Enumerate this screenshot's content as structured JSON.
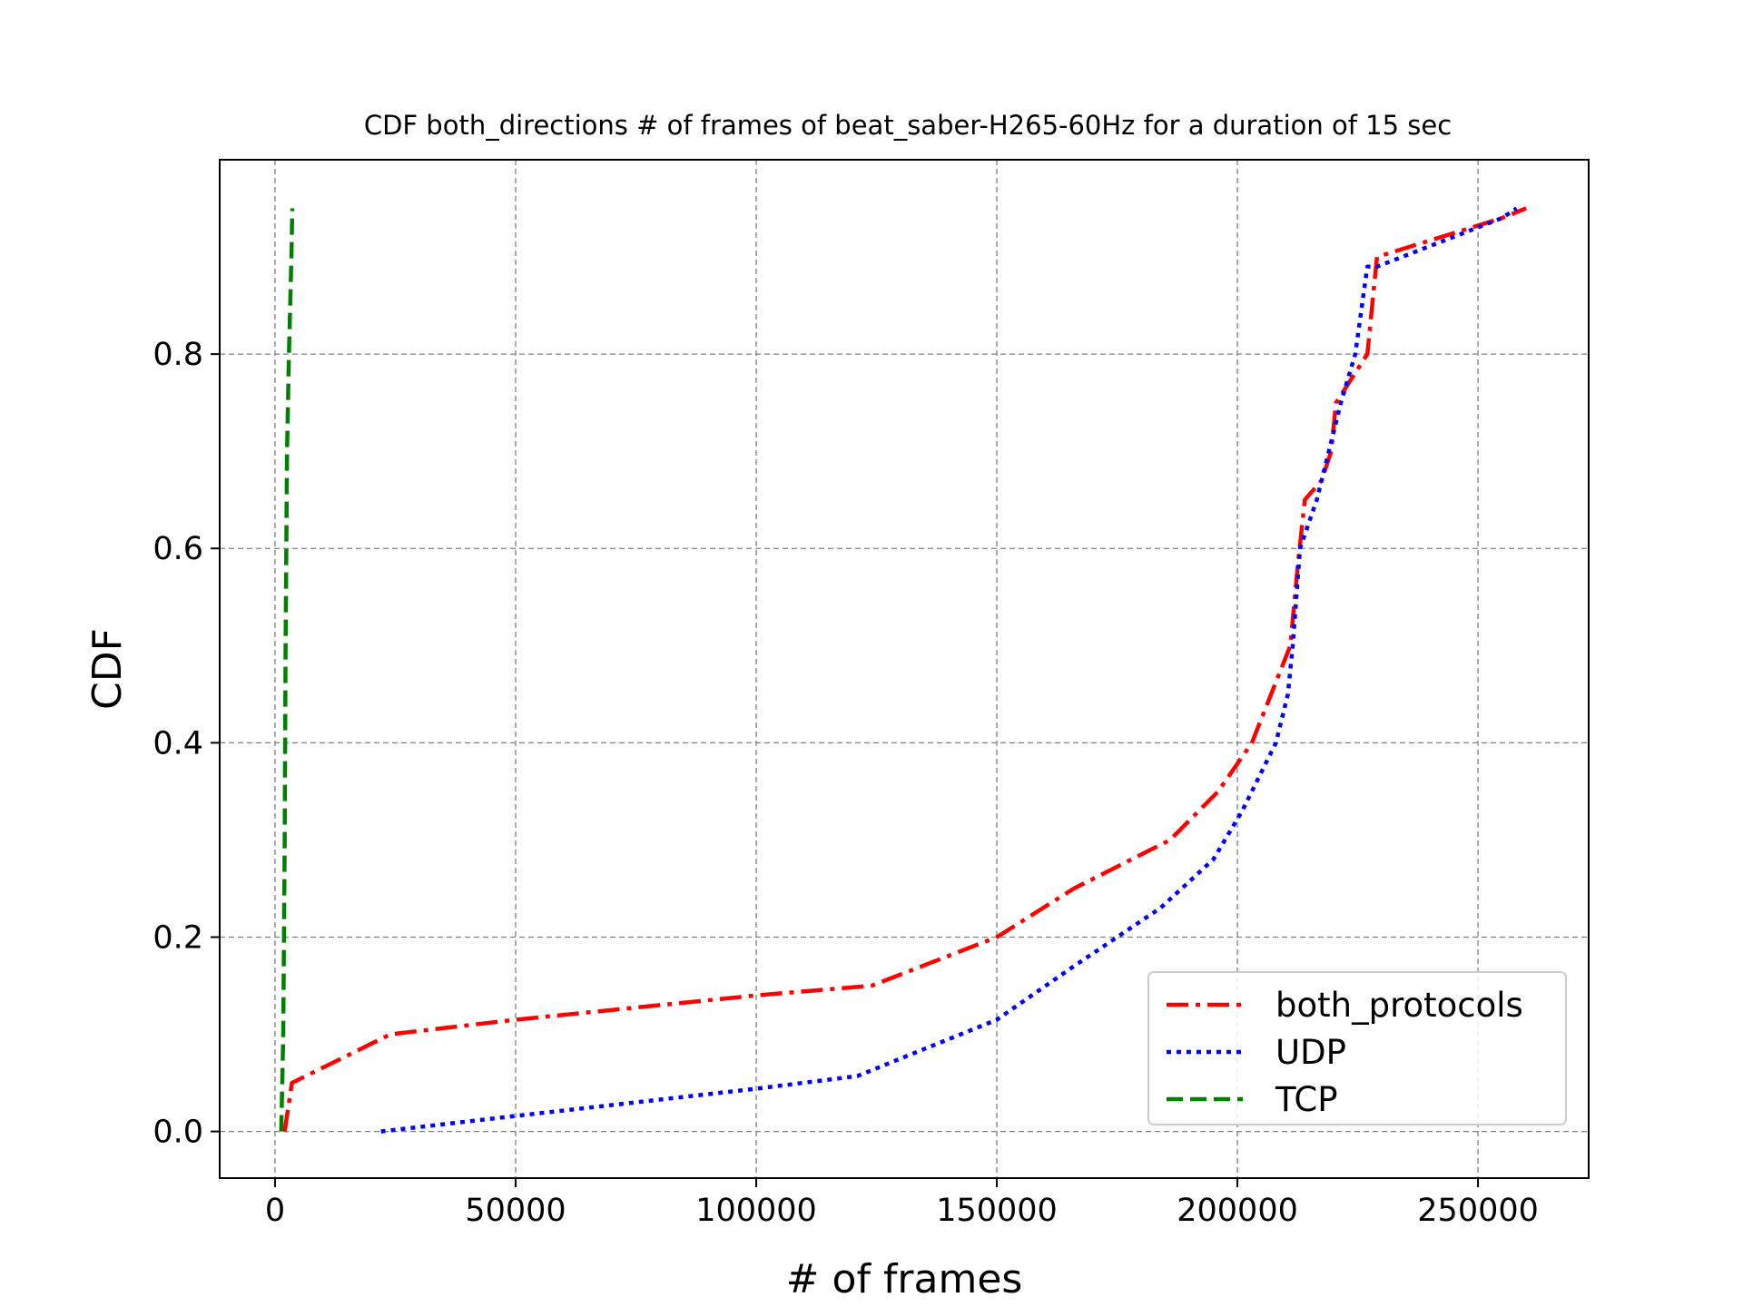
{
  "chart_data": {
    "type": "line",
    "title": "CDF both_directions # of frames of beat_saber-H265-60Hz for a duration of 15 sec",
    "xlabel": "# of frames",
    "ylabel": "CDF",
    "xlim": [
      -11500,
      273000
    ],
    "ylim": [
      -0.048,
      1.0
    ],
    "xticks": [
      0,
      50000,
      100000,
      150000,
      200000,
      250000
    ],
    "xtick_labels": [
      "0",
      "50000",
      "100000",
      "150000",
      "200000",
      "250000"
    ],
    "yticks": [
      0.0,
      0.2,
      0.4,
      0.6,
      0.8
    ],
    "ytick_labels": [
      "0.0",
      "0.2",
      "0.4",
      "0.6",
      "0.8"
    ],
    "grid": true,
    "legend_position": "lower-right",
    "series": [
      {
        "name": "both_protocols",
        "color": "#ff0000",
        "linestyle": "dashdot",
        "x": [
          2000,
          3500,
          24000,
          50000,
          80000,
          100000,
          124000,
          150000,
          166000,
          186000,
          196000,
          203000,
          211000,
          212500,
          214000,
          217500,
          219500,
          220500,
          227000,
          229000,
          255000,
          260000
        ],
        "y": [
          0.0,
          0.05,
          0.1,
          0.115,
          0.13,
          0.14,
          0.15,
          0.2,
          0.25,
          0.3,
          0.35,
          0.4,
          0.5,
          0.58,
          0.65,
          0.67,
          0.7,
          0.75,
          0.8,
          0.9,
          0.94,
          0.95
        ]
      },
      {
        "name": "UDP",
        "color": "#0000ff",
        "linestyle": "dotted",
        "x": [
          22000,
          50000,
          100000,
          121000,
          150000,
          166000,
          184000,
          195000,
          201000,
          208000,
          210500,
          211500,
          213000,
          216500,
          219000,
          221500,
          224500,
          227000,
          229000,
          255000,
          258000
        ],
        "y": [
          0.0,
          0.016,
          0.044,
          0.057,
          0.115,
          0.17,
          0.23,
          0.28,
          0.33,
          0.4,
          0.45,
          0.5,
          0.6,
          0.65,
          0.7,
          0.75,
          0.8,
          0.89,
          0.89,
          0.94,
          0.95
        ]
      },
      {
        "name": "TCP",
        "color": "#008000",
        "linestyle": "dashed",
        "x": [
          1300,
          1700,
          2000,
          2200,
          2500,
          2900,
          3400,
          3600
        ],
        "y": [
          0.0,
          0.1,
          0.3,
          0.5,
          0.7,
          0.8,
          0.9,
          0.95
        ]
      }
    ]
  }
}
